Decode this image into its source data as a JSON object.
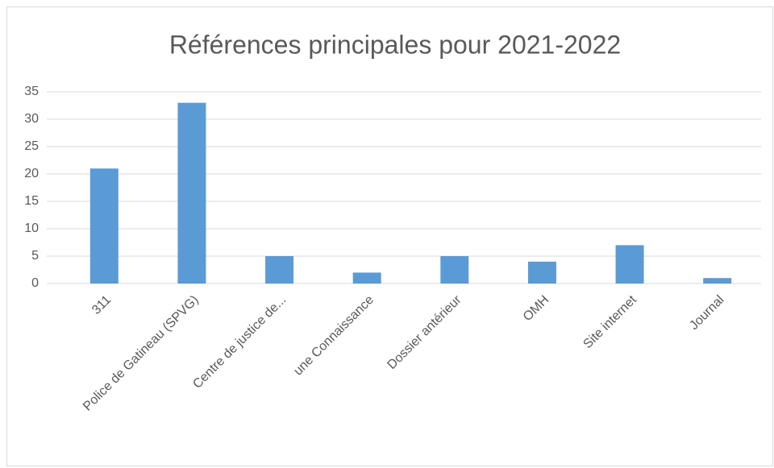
{
  "chart_data": {
    "type": "bar",
    "title": "Références principales pour 2021-2022",
    "categories": [
      "311",
      "Police de Gatineau (SPVG)",
      "Centre de justice de...",
      "une Connaissance",
      "Dossier antérieur",
      "OMH",
      "Site internet",
      "Journal"
    ],
    "values": [
      21,
      33,
      5,
      2,
      5,
      4,
      7,
      1
    ],
    "color": "#5b9bd5",
    "ylim": [
      0,
      35
    ],
    "yticks": [
      0,
      5,
      10,
      15,
      20,
      25,
      30,
      35
    ],
    "grid": true
  }
}
